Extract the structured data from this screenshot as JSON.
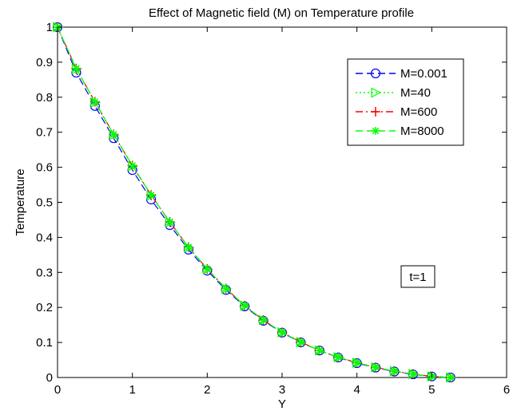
{
  "chart_data": {
    "type": "line",
    "title": "Effect of Magnetic field (M) on Temperature profile",
    "xlabel": "Y",
    "ylabel": "Temperature",
    "xlim": [
      0,
      6
    ],
    "ylim": [
      0,
      1
    ],
    "xticks": [
      "0",
      "1",
      "2",
      "3",
      "4",
      "5",
      "6"
    ],
    "yticks": [
      "0",
      "0.1",
      "0.2",
      "0.3",
      "0.4",
      "0.5",
      "0.6",
      "0.7",
      "0.8",
      "0.9",
      "1"
    ],
    "grid": false,
    "legend_position": "top-right",
    "annotation": "t=1",
    "x": [
      0,
      0.25,
      0.5,
      0.75,
      1.0,
      1.25,
      1.5,
      1.75,
      2.0,
      2.25,
      2.5,
      2.75,
      3.0,
      3.25,
      3.5,
      3.75,
      4.0,
      4.25,
      4.5,
      4.75,
      5.0,
      5.25
    ],
    "series": [
      {
        "name": "M=0.001",
        "color": "#0000ff",
        "line": "dashed",
        "marker": "circle",
        "values": [
          1.0,
          0.87,
          0.775,
          0.683,
          0.592,
          0.508,
          0.435,
          0.365,
          0.305,
          0.25,
          0.203,
          0.162,
          0.128,
          0.1,
          0.077,
          0.057,
          0.041,
          0.028,
          0.017,
          0.009,
          0.003,
          0.0
        ]
      },
      {
        "name": "M=40",
        "color": "#00ff00",
        "line": "dotted",
        "marker": "triangle-right",
        "values": [
          1.0,
          0.88,
          0.785,
          0.692,
          0.603,
          0.52,
          0.443,
          0.371,
          0.309,
          0.253,
          0.205,
          0.164,
          0.129,
          0.101,
          0.077,
          0.058,
          0.042,
          0.029,
          0.018,
          0.01,
          0.003,
          0.0
        ]
      },
      {
        "name": "M=600",
        "color": "#ff0000",
        "line": "dashdot",
        "marker": "plus",
        "values": [
          1.0,
          0.882,
          0.787,
          0.694,
          0.605,
          0.521,
          0.444,
          0.372,
          0.31,
          0.254,
          0.205,
          0.164,
          0.129,
          0.101,
          0.077,
          0.058,
          0.042,
          0.029,
          0.018,
          0.01,
          0.003,
          0.0
        ]
      },
      {
        "name": "M=8000",
        "color": "#00ff00",
        "line": "dashed",
        "marker": "star",
        "values": [
          1.0,
          0.882,
          0.787,
          0.694,
          0.605,
          0.521,
          0.444,
          0.372,
          0.31,
          0.254,
          0.205,
          0.164,
          0.129,
          0.101,
          0.077,
          0.058,
          0.042,
          0.029,
          0.018,
          0.01,
          0.003,
          0.0
        ]
      }
    ]
  }
}
